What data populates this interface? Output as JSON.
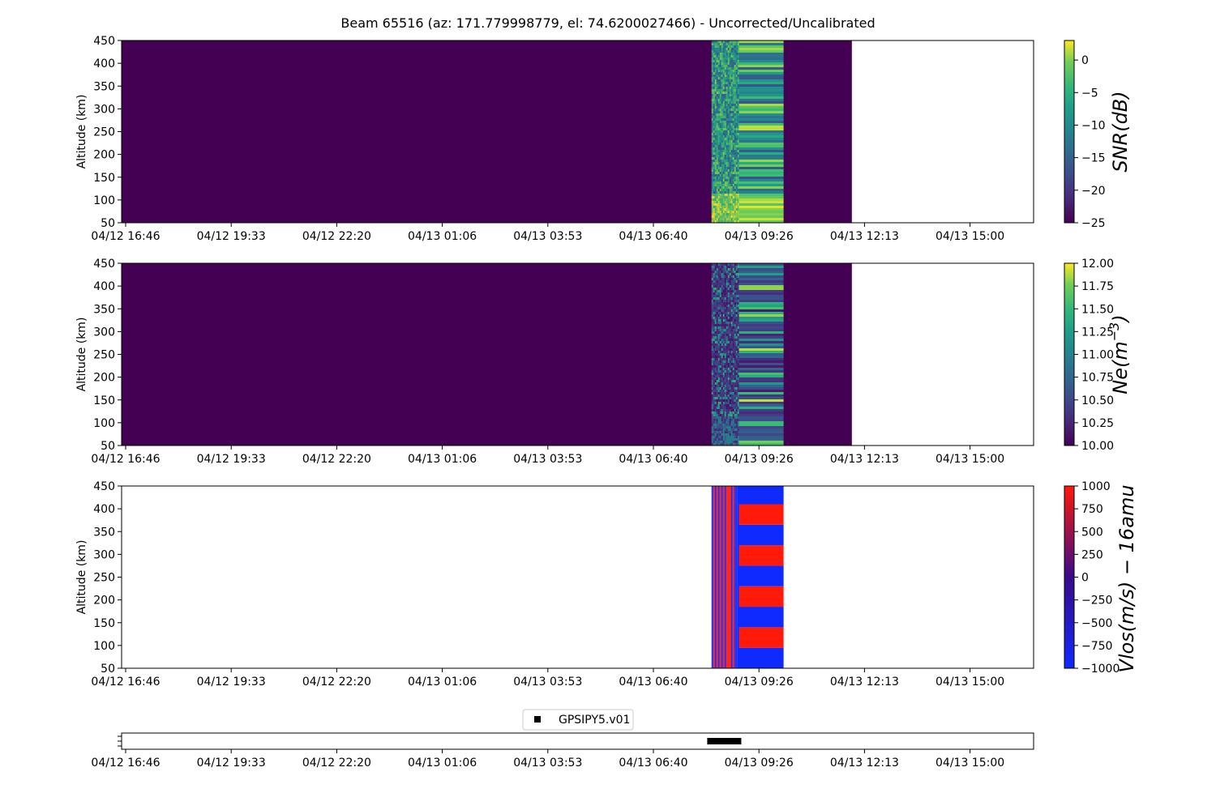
{
  "title": "Beam 65516 (az: 171.779998779, el: 74.6200027466) - Uncorrected/Uncalibrated",
  "colors": {
    "viridis_low": "#440154",
    "viridis_mid": "#21918c",
    "viridis_high": "#fde725",
    "vel_pos": "#ff1a0a",
    "vel_neg": "#0f2aff",
    "marker": "#000000"
  },
  "chart_data": [
    {
      "type": "heatmap",
      "name": "snr",
      "ylabel": "Altitude (km)",
      "colorbar_label": "SNR(dB)",
      "colormap": "viridis",
      "ylim": [
        50,
        450
      ],
      "yticks": [
        "50",
        "100",
        "150",
        "200",
        "250",
        "300",
        "350",
        "400",
        "450"
      ],
      "xticks": [
        "04/12 16:46",
        "04/12 19:33",
        "04/12 22:20",
        "04/13 01:06",
        "04/13 03:53",
        "04/13 06:40",
        "04/13 09:26",
        "04/13 12:13",
        "04/13 15:00"
      ],
      "clim": [
        -25,
        3
      ],
      "colorbar_ticks": [
        "0",
        "−5",
        "−10",
        "−15",
        "−20",
        "−25"
      ],
      "colorbar_tick_values": [
        0,
        -5,
        -10,
        -15,
        -20,
        -25
      ],
      "data_extent_hours": [
        0,
        19.15
      ],
      "active_extent_hours": [
        15.45,
        17.35
      ]
    },
    {
      "type": "heatmap",
      "name": "ne",
      "ylabel": "Altitude (km)",
      "colorbar_label": "Ne(m",
      "colorbar_label_sup": "−3",
      "colorbar_label_end": ")",
      "colormap": "viridis",
      "ylim": [
        50,
        450
      ],
      "yticks": [
        "50",
        "100",
        "150",
        "200",
        "250",
        "300",
        "350",
        "400",
        "450"
      ],
      "xticks": [
        "04/12 16:46",
        "04/12 19:33",
        "04/12 22:20",
        "04/13 01:06",
        "04/13 03:53",
        "04/13 06:40",
        "04/13 09:26",
        "04/13 12:13",
        "04/13 15:00"
      ],
      "clim": [
        10,
        12
      ],
      "colorbar_ticks": [
        "12.00",
        "11.75",
        "11.50",
        "11.25",
        "11.00",
        "10.75",
        "10.50",
        "10.25",
        "10.00"
      ],
      "colorbar_tick_values": [
        12,
        11.75,
        11.5,
        11.25,
        11,
        10.75,
        10.5,
        10.25,
        10
      ],
      "data_extent_hours": [
        0,
        19.15
      ],
      "active_extent_hours": [
        15.45,
        17.35
      ]
    },
    {
      "type": "heatmap",
      "name": "vlos",
      "ylabel": "Altitude (km)",
      "colorbar_label": "Vlos(m/s) − 16amu",
      "colormap": "blue-red",
      "ylim": [
        50,
        450
      ],
      "yticks": [
        "50",
        "100",
        "150",
        "200",
        "250",
        "300",
        "350",
        "400",
        "450"
      ],
      "xticks": [
        "04/12 16:46",
        "04/12 19:33",
        "04/12 22:20",
        "04/13 01:06",
        "04/13 03:53",
        "04/13 06:40",
        "04/13 09:26",
        "04/13 12:13",
        "04/13 15:00"
      ],
      "clim": [
        -1000,
        1000
      ],
      "colorbar_ticks": [
        "1000",
        "750",
        "500",
        "250",
        "0",
        "−250",
        "−500",
        "−750",
        "−1000"
      ],
      "colorbar_tick_values": [
        1000,
        750,
        500,
        250,
        0,
        -250,
        -500,
        -750,
        -1000
      ],
      "active_extent_hours": [
        15.45,
        17.35
      ],
      "band_edges_km": [
        50,
        95,
        140,
        185,
        230,
        275,
        320,
        365,
        410,
        450
      ]
    },
    {
      "type": "scatter",
      "name": "gps",
      "legend": "GPSIPY5.v01",
      "legend_position": "top-center",
      "xticks": [
        "04/12 16:46",
        "04/12 19:33",
        "04/12 22:20",
        "04/13 01:06",
        "04/13 03:53",
        "04/13 06:40",
        "04/13 09:26",
        "04/13 12:13",
        "04/13 15:00"
      ],
      "x_extent_hours": [
        15.4,
        16.2
      ]
    }
  ]
}
